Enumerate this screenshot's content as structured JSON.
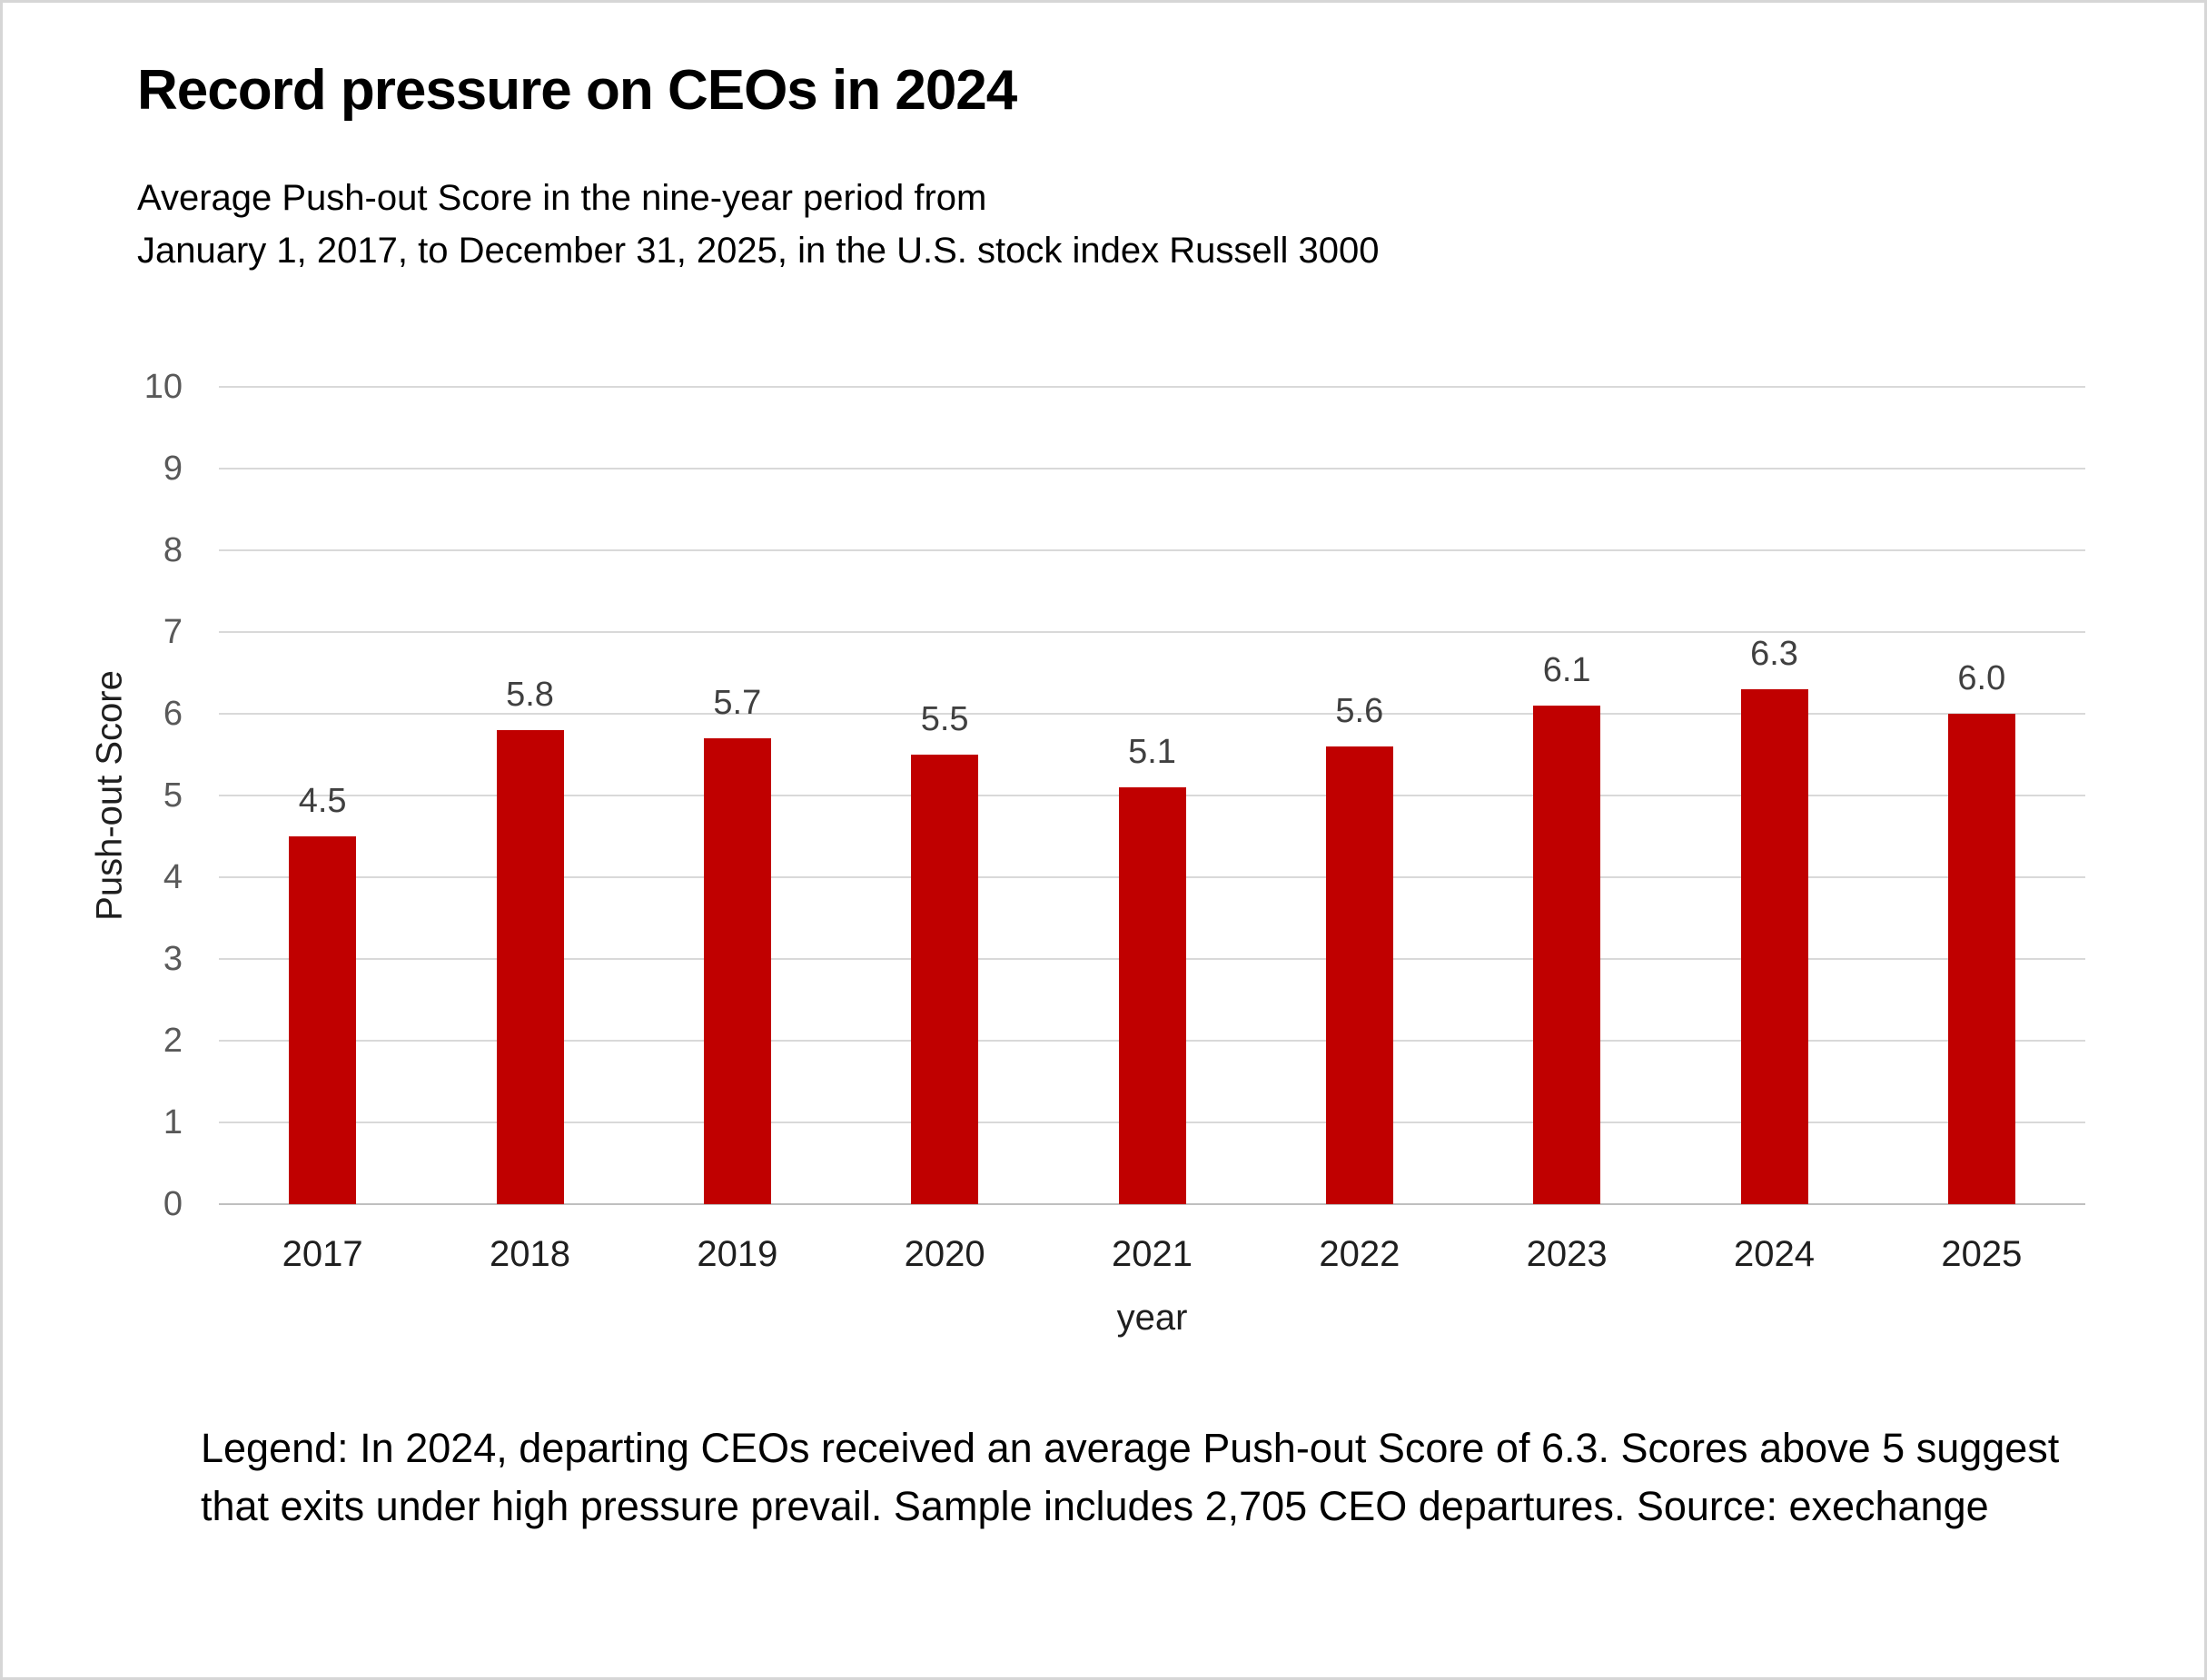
{
  "header": {
    "title": "Record pressure on CEOs in 2024",
    "subtitle_lines": [
      "Average Push-out Score in the nine-year period from",
      "January 1, 2017, to December 31, 2025, in the U.S. stock index Russell 3000"
    ]
  },
  "chart_data": {
    "type": "bar",
    "title": "Record pressure on CEOs in 2024",
    "categories": [
      "2017",
      "2018",
      "2019",
      "2020",
      "2021",
      "2022",
      "2023",
      "2024",
      "2025"
    ],
    "values": [
      4.5,
      5.8,
      5.7,
      5.5,
      5.1,
      5.6,
      6.1,
      6.3,
      6.0
    ],
    "data_labels": [
      "4.5",
      "5.8",
      "5.7",
      "5.5",
      "5.1",
      "5.6",
      "6.1",
      "6.3",
      "6.0"
    ],
    "xlabel": "year",
    "ylabel": "Push-out Score",
    "ylim": [
      0,
      10
    ],
    "ytick_step": 1,
    "grid": true,
    "legend_position": "none",
    "colors": {
      "bar": "#c00000",
      "gridline": "#d9d9d9",
      "axis_line": "#bfbfbf",
      "tick_label": "#595959",
      "data_label": "#404040",
      "category_label": "#1f1f1f"
    }
  },
  "footer": {
    "legend_lines": [
      "Legend: In 2024, departing CEOs received an average Push-out Score of 6.3. Scores above 5 suggest",
      "that exits under high pressure prevail. Sample includes 2,705 CEO departures. Source: exechange"
    ]
  }
}
